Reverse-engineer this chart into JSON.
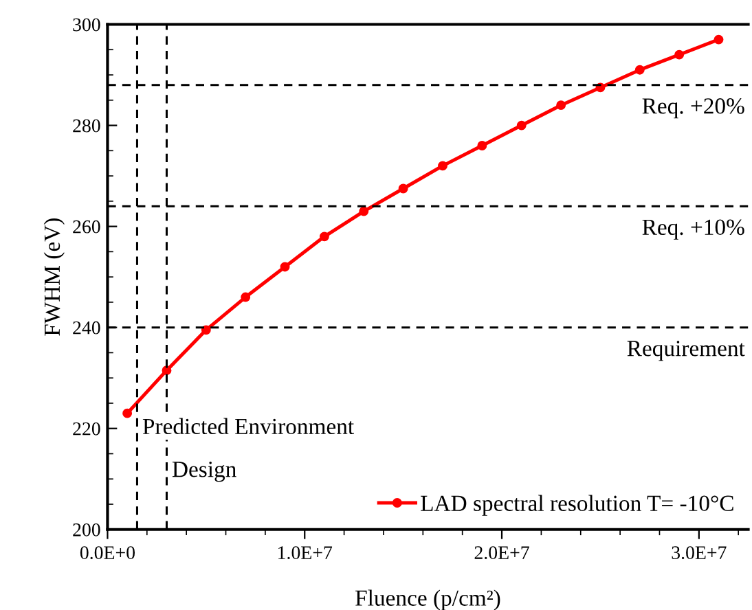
{
  "chart_data": {
    "type": "line",
    "xlabel": "Fluence (p/cm²)",
    "ylabel": "FWHM (eV)",
    "x": [
      1000000,
      3000000,
      5000000,
      7000000,
      9000000,
      11000000,
      13000000,
      15000000,
      17000000,
      19000000,
      21000000,
      23000000,
      25000000,
      27000000,
      29000000,
      31000000
    ],
    "series": [
      {
        "name": "LAD spectral resolution T= -10°C",
        "color": "#ff0000",
        "values": [
          223,
          231.5,
          239.5,
          246,
          252,
          258,
          263,
          267.5,
          272,
          276,
          280,
          284,
          287.5,
          291,
          294,
          297
        ]
      }
    ],
    "xlim": [
      0,
      32500000
    ],
    "ylim": [
      200,
      300
    ],
    "xticks": [
      {
        "value": 0,
        "label": "0.0E+0"
      },
      {
        "value": 10000000,
        "label": "1.0E+7"
      },
      {
        "value": 20000000,
        "label": "2.0E+7"
      },
      {
        "value": 30000000,
        "label": "3.0E+7"
      }
    ],
    "yticks": [
      200,
      220,
      240,
      260,
      280,
      300
    ],
    "ref_lines": [
      {
        "axis": "y",
        "value": 240,
        "label": "Requirement",
        "color": "#000000",
        "line_style": "dashed"
      },
      {
        "axis": "y",
        "value": 264,
        "label": "Req. +10%",
        "color": "#000000",
        "line_style": "dashed"
      },
      {
        "axis": "y",
        "value": 288,
        "label": "Req. +20%",
        "color": "#000000",
        "line_style": "dashed"
      },
      {
        "axis": "x",
        "value": 1500000,
        "label": "Predicted Environment",
        "color": "#000000",
        "line_style": "dashed"
      },
      {
        "axis": "x",
        "value": 3000000,
        "label": "Design",
        "color": "#000000",
        "line_style": "dashed"
      }
    ],
    "marker": "circle",
    "line_style": "solid",
    "grid": false,
    "legend": "bottom right"
  }
}
